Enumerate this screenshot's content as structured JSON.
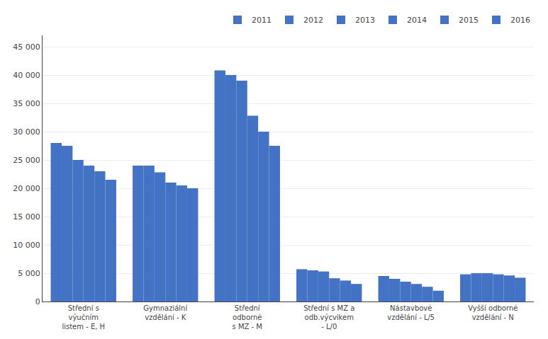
{
  "chart_data": {
    "type": "bar",
    "categories": [
      "Střední s\nvýučním\nlistem - E, H",
      "Gymnaziální\nvzdělání - K",
      "Střední\nodborné\ns MZ - M",
      "Střední s MZ a\nodb.výcvikem\n- L/0",
      "Nástavbové\nvzdělání - L/5",
      "Vyšší odborné\nvzdělání - N"
    ],
    "series": [
      {
        "name": "2011",
        "values": [
          28000,
          24000,
          40800,
          5700,
          4500,
          4800
        ]
      },
      {
        "name": "2012",
        "values": [
          27500,
          24000,
          40000,
          5500,
          4000,
          5000
        ]
      },
      {
        "name": "2013",
        "values": [
          25000,
          22800,
          39000,
          5300,
          3500,
          5000
        ]
      },
      {
        "name": "2014",
        "values": [
          24000,
          21000,
          32800,
          4100,
          3100,
          4800
        ]
      },
      {
        "name": "2015",
        "values": [
          23000,
          20500,
          30000,
          3700,
          2600,
          4600
        ]
      },
      {
        "name": "2016",
        "values": [
          21500,
          20000,
          27500,
          3100,
          1900,
          4200
        ]
      }
    ],
    "color": "#4472C4",
    "ylim": [
      0,
      47000
    ],
    "yticks": [
      0,
      {
        "value": 5000,
        "label": "5 000"
      },
      {
        "value": 10000,
        "label": "10 000"
      },
      {
        "value": 15000,
        "label": "15 000"
      },
      {
        "value": 20000,
        "label": "20 000"
      },
      {
        "value": 25000,
        "label": "25 000"
      },
      {
        "value": 30000,
        "label": "30 000"
      },
      {
        "value": 35000,
        "label": "35 000"
      },
      {
        "value": 40000,
        "label": "40 000"
      },
      {
        "value": 45000,
        "label": "45 000"
      }
    ],
    "grid": true,
    "legend": "upper right"
  }
}
